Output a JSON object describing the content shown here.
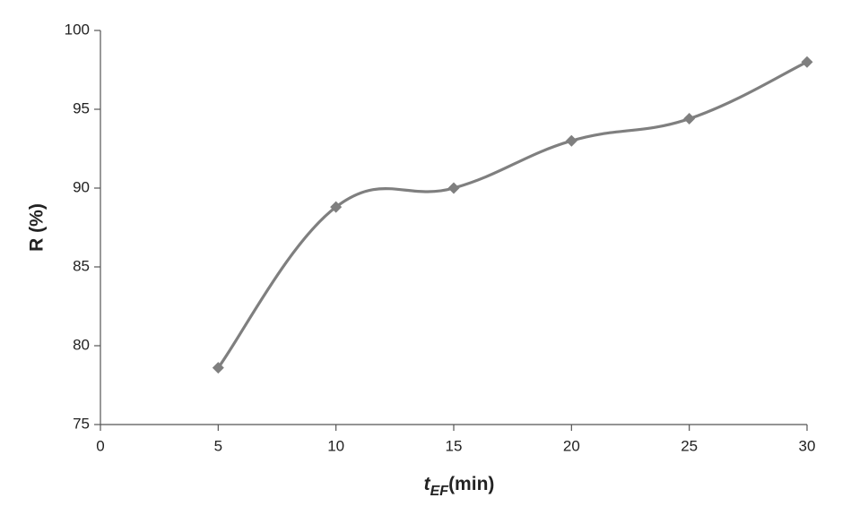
{
  "chart_data": {
    "type": "line",
    "x_label": {
      "main": "t",
      "subscript": "EF",
      "unit": "(min)"
    },
    "y_label": "R (%)",
    "x": [
      5,
      10,
      15,
      20,
      25,
      30
    ],
    "series": [
      {
        "name": "R",
        "color": "#7f7f7f",
        "values": [
          78.6,
          88.8,
          90.0,
          93.0,
          94.4,
          98.0
        ]
      }
    ],
    "xlim": [
      0,
      30
    ],
    "xticks": [
      0,
      5,
      10,
      15,
      20,
      25,
      30
    ],
    "ylim": [
      75,
      100
    ],
    "yticks": [
      75,
      80,
      85,
      90,
      95,
      100
    ],
    "smooth": true,
    "marker": "diamond",
    "grid": false
  }
}
